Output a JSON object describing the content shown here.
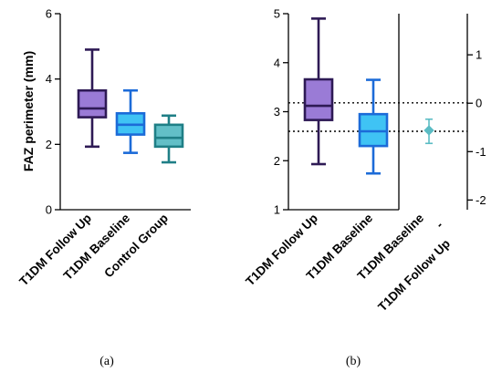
{
  "chart_data": [
    {
      "panel": "(a)",
      "type": "box",
      "ylabel": "FAZ perimeter (mm)",
      "ylim": [
        0,
        6
      ],
      "yticks": [
        "0",
        "2",
        "4",
        "6"
      ],
      "categories": [
        "T1DM Follow Up",
        "T1DM Baseline",
        "Control Group"
      ],
      "boxes": [
        {
          "min": 1.93,
          "q1": 2.83,
          "median": 3.1,
          "q3": 3.65,
          "max": 4.9,
          "stroke": "#2e1a55",
          "fill": "#9a7bd6"
        },
        {
          "min": 1.74,
          "q1": 2.3,
          "median": 2.6,
          "q3": 2.95,
          "max": 3.65,
          "stroke": "#1c6bd8",
          "fill": "#3fc3f4"
        },
        {
          "min": 1.45,
          "q1": 1.93,
          "median": 2.2,
          "q3": 2.6,
          "max": 2.88,
          "stroke": "#1f7f86",
          "fill": "#62bfc7"
        }
      ]
    },
    {
      "panel": "(b)",
      "type": "box_with_difference",
      "ylim": [
        1,
        5
      ],
      "yticks": [
        "1",
        "2",
        "3",
        "4",
        "5"
      ],
      "right_ylim": [
        -2.2,
        1.85
      ],
      "right_yticks": [
        "-2",
        "-1",
        "0",
        "1"
      ],
      "categories": [
        "T1DM Follow Up",
        "T1DM Baseline"
      ],
      "difference_label_line1": "T1DM Baseline",
      "difference_label_dash": "-",
      "difference_label_line2": "T1DM Follow Up",
      "boxes": [
        {
          "min": 1.93,
          "q1": 2.83,
          "median": 3.12,
          "q3": 3.66,
          "max": 4.9,
          "stroke": "#2e1a55",
          "fill": "#9a7bd6"
        },
        {
          "min": 1.74,
          "q1": 2.3,
          "median": 2.6,
          "q3": 2.95,
          "max": 3.65,
          "stroke": "#1c6bd8",
          "fill": "#3fc3f4"
        }
      ],
      "difference": {
        "mean": -0.56,
        "ci_low": -0.83,
        "ci_high": -0.33,
        "color": "#5bbcc4"
      },
      "reference_lines": [
        3.18,
        2.6
      ]
    }
  ]
}
